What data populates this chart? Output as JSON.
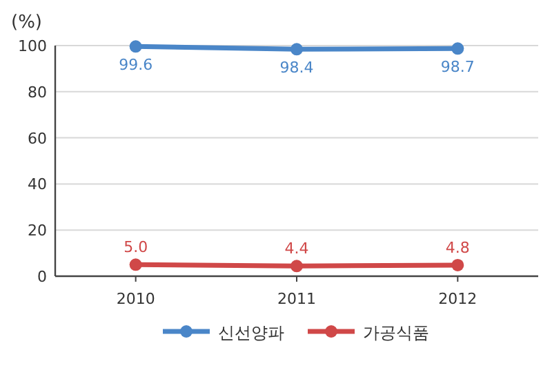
{
  "chart_data": {
    "type": "line",
    "ylabel": "(%)",
    "categories": [
      "2010",
      "2011",
      "2012"
    ],
    "series": [
      {
        "name": "신선양파",
        "color": "#4a86c8",
        "values": [
          99.6,
          98.4,
          98.7
        ],
        "value_labels": [
          "99.6",
          "98.4",
          "98.7"
        ]
      },
      {
        "name": "가공식품",
        "color": "#d04848",
        "values": [
          5.0,
          4.4,
          4.8
        ],
        "value_labels": [
          "5.0",
          "4.4",
          "4.8"
        ]
      }
    ],
    "ylim": [
      0,
      100
    ],
    "yticks": [
      0,
      20,
      40,
      60,
      80,
      100
    ],
    "grid": "y",
    "legend": "bottom",
    "marker": "circle",
    "line_style": "solid"
  }
}
